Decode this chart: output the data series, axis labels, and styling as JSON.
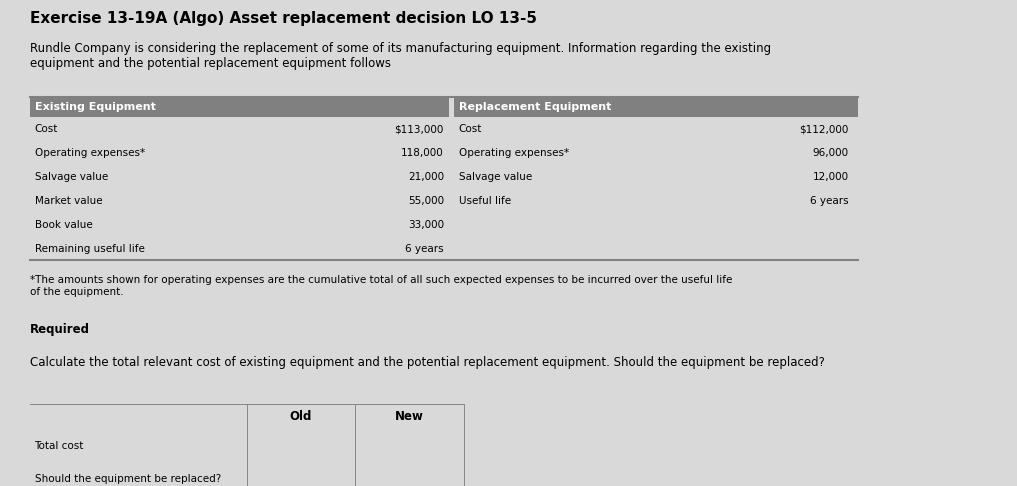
{
  "title": "Exercise 13-19A (Algo) Asset replacement decision LO 13-5",
  "intro_text": "Rundle Company is considering the replacement of some of its manufacturing equipment. Information regarding the existing\nequipment and the potential replacement equipment follows",
  "existing_label": "Existing Equipment",
  "replacement_label": "Replacement Equipment",
  "existing_rows": [
    [
      "Cost",
      "$113,000"
    ],
    [
      "Operating expenses*",
      "118,000"
    ],
    [
      "Salvage value",
      "21,000"
    ],
    [
      "Market value",
      "55,000"
    ],
    [
      "Book value",
      "33,000"
    ],
    [
      "Remaining useful life",
      "6 years"
    ]
  ],
  "replacement_rows": [
    [
      "Cost",
      "$112,000"
    ],
    [
      "Operating expenses*",
      "96,000"
    ],
    [
      "Salvage value",
      "12,000"
    ],
    [
      "Useful life",
      "6 years"
    ]
  ],
  "footnote": "*The amounts shown for operating expenses are the cumulative total of all such expected expenses to be incurred over the useful life\nof the equipment.",
  "required_label": "Required",
  "required_text": "Calculate the total relevant cost of existing equipment and the potential replacement equipment. Should the equipment be replaced?",
  "answer_header": [
    "",
    "Old",
    "New"
  ],
  "answer_rows": [
    "Total cost",
    "Should the equipment be replaced?"
  ],
  "bg_color": "#d9d9d9",
  "table_header_bg": "#5b9bd5",
  "info_table_header_bg": "#808080",
  "info_table_bg": "#d9d9d9"
}
